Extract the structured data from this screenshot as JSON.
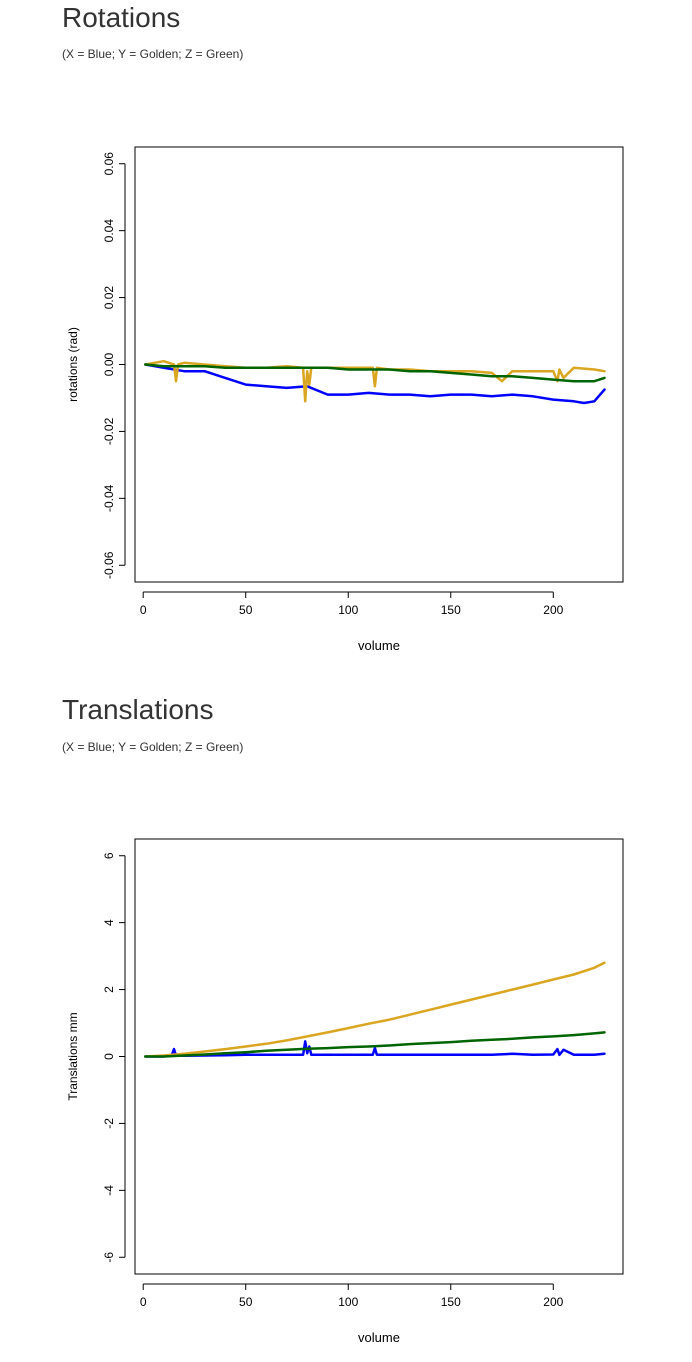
{
  "colors": {
    "x": "#0000ff",
    "y": "#daa520",
    "z": "#006400"
  },
  "chart_data": [
    {
      "type": "line",
      "title": "Rotations",
      "subtitle": "(X = Blue; Y = Golden; Z = Green)",
      "xlabel": "volume",
      "ylabel": "rotations (rad)",
      "xlim": [
        -4,
        234
      ],
      "ylim": [
        -0.065,
        0.065
      ],
      "xticks": [
        0,
        50,
        100,
        150,
        200
      ],
      "yticks": [
        -0.06,
        -0.04,
        -0.02,
        0.0,
        0.02,
        0.04,
        0.06
      ],
      "ytick_labels": [
        "-0.06",
        "-0.04",
        "-0.02",
        "0.00",
        "0.02",
        "0.04",
        "0.06"
      ],
      "grid": false,
      "series": [
        {
          "color": "#0000ff",
          "x": [
            1,
            10,
            20,
            30,
            40,
            50,
            60,
            70,
            80,
            90,
            100,
            110,
            120,
            130,
            140,
            150,
            160,
            170,
            180,
            190,
            200,
            210,
            215,
            220,
            225
          ],
          "y": [
            0.0,
            -0.001,
            -0.002,
            -0.002,
            -0.004,
            -0.006,
            -0.0065,
            -0.007,
            -0.0065,
            -0.009,
            -0.009,
            -0.0085,
            -0.009,
            -0.009,
            -0.0095,
            -0.009,
            -0.009,
            -0.0095,
            -0.009,
            -0.0095,
            -0.0105,
            -0.011,
            -0.0115,
            -0.011,
            -0.0075
          ]
        },
        {
          "color": "#daa520",
          "x": [
            1,
            10,
            15,
            16,
            17,
            20,
            30,
            40,
            50,
            60,
            70,
            78,
            79,
            80,
            81,
            82,
            90,
            100,
            112,
            113,
            114,
            120,
            130,
            140,
            150,
            160,
            170,
            175,
            180,
            190,
            200,
            202,
            203,
            205,
            210,
            220,
            225
          ],
          "y": [
            0.0,
            0.001,
            0.0,
            -0.005,
            0.0,
            0.0005,
            0.0,
            -0.0005,
            -0.001,
            -0.001,
            -0.0005,
            -0.001,
            -0.011,
            -0.002,
            -0.006,
            -0.001,
            -0.001,
            -0.001,
            -0.001,
            -0.0065,
            -0.001,
            -0.0015,
            -0.0015,
            -0.002,
            -0.002,
            -0.002,
            -0.0025,
            -0.005,
            -0.002,
            -0.002,
            -0.002,
            -0.005,
            -0.0015,
            -0.004,
            -0.001,
            -0.0015,
            -0.002
          ]
        },
        {
          "color": "#006400",
          "x": [
            1,
            10,
            20,
            30,
            40,
            50,
            60,
            70,
            80,
            90,
            100,
            110,
            120,
            130,
            140,
            150,
            160,
            170,
            180,
            190,
            200,
            210,
            220,
            225
          ],
          "y": [
            0.0,
            -0.0005,
            -0.0005,
            -0.0005,
            -0.001,
            -0.001,
            -0.001,
            -0.001,
            -0.001,
            -0.001,
            -0.0015,
            -0.0015,
            -0.0015,
            -0.002,
            -0.002,
            -0.0025,
            -0.003,
            -0.0035,
            -0.0035,
            -0.004,
            -0.0045,
            -0.005,
            -0.005,
            -0.004
          ]
        }
      ]
    },
    {
      "type": "line",
      "title": "Translations",
      "subtitle": "(X = Blue; Y = Golden; Z = Green)",
      "xlabel": "volume",
      "ylabel": "Translations mm",
      "xlim": [
        -4,
        234
      ],
      "ylim": [
        -6.5,
        6.5
      ],
      "xticks": [
        0,
        50,
        100,
        150,
        200
      ],
      "yticks": [
        -6,
        -4,
        -2,
        0,
        2,
        4,
        6
      ],
      "ytick_labels": [
        "-6",
        "-4",
        "-2",
        "0",
        "2",
        "4",
        "6"
      ],
      "grid": false,
      "series": [
        {
          "color": "#0000ff",
          "x": [
            1,
            10,
            14,
            15,
            16,
            20,
            30,
            40,
            50,
            60,
            70,
            78,
            79,
            80,
            81,
            82,
            90,
            100,
            112,
            113,
            114,
            120,
            130,
            140,
            150,
            160,
            170,
            180,
            190,
            200,
            202,
            203,
            205,
            210,
            220,
            225
          ],
          "y": [
            0.0,
            0.0,
            0.05,
            0.22,
            0.03,
            0.02,
            0.03,
            0.04,
            0.05,
            0.05,
            0.05,
            0.05,
            0.45,
            0.1,
            0.3,
            0.05,
            0.05,
            0.05,
            0.05,
            0.25,
            0.05,
            0.05,
            0.05,
            0.05,
            0.05,
            0.05,
            0.05,
            0.08,
            0.05,
            0.06,
            0.22,
            0.05,
            0.2,
            0.05,
            0.05,
            0.08
          ]
        },
        {
          "color": "#daa520",
          "x": [
            1,
            10,
            20,
            30,
            40,
            50,
            60,
            70,
            80,
            90,
            100,
            110,
            120,
            130,
            140,
            150,
            160,
            170,
            180,
            190,
            200,
            210,
            220,
            225
          ],
          "y": [
            0.0,
            0.03,
            0.08,
            0.15,
            0.22,
            0.3,
            0.38,
            0.48,
            0.6,
            0.72,
            0.85,
            0.98,
            1.1,
            1.25,
            1.4,
            1.55,
            1.7,
            1.85,
            2.0,
            2.15,
            2.3,
            2.45,
            2.65,
            2.8
          ]
        },
        {
          "color": "#006400",
          "x": [
            1,
            10,
            20,
            30,
            40,
            50,
            60,
            70,
            80,
            90,
            100,
            110,
            120,
            130,
            140,
            150,
            160,
            170,
            180,
            190,
            200,
            210,
            220,
            225
          ],
          "y": [
            0.0,
            0.0,
            0.03,
            0.06,
            0.1,
            0.13,
            0.17,
            0.2,
            0.23,
            0.25,
            0.28,
            0.3,
            0.33,
            0.37,
            0.4,
            0.43,
            0.47,
            0.5,
            0.53,
            0.57,
            0.6,
            0.64,
            0.69,
            0.72
          ]
        }
      ]
    }
  ]
}
